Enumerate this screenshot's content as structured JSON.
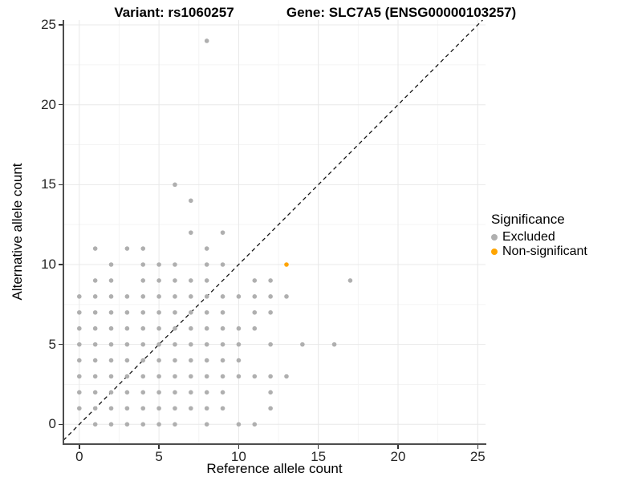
{
  "header": {
    "variant_title": "Variant: rs1060257",
    "gene_title": "Gene: SLC7A5 (ENSG00000103257)"
  },
  "colors": {
    "excluded_point": "#afafaf",
    "non_significant_point": "#ffa500",
    "axis_line": "#4d4d4d",
    "major_grid": "#e8e8e8",
    "minor_grid": "#f4f4f4",
    "identity_line": "#111111"
  },
  "chart_data": {
    "type": "scatter",
    "title": "Variant: rs1060257   Gene: SLC7A5 (ENSG00000103257)",
    "xlabel": "Reference allele count",
    "ylabel": "Alternative allele count",
    "xlim": [
      -1.0,
      25.5
    ],
    "ylim": [
      -1.2,
      25.3
    ],
    "x_ticks": [
      0,
      5,
      10,
      15,
      20,
      25
    ],
    "y_ticks": [
      0,
      5,
      10,
      15,
      20,
      25
    ],
    "minor_ticks": [
      2.5,
      7.5,
      12.5,
      17.5,
      22.5
    ],
    "grid": "major and minor, light gray on white",
    "reference_line": {
      "type": "identity y = x",
      "style": "dashed",
      "color": "#111111"
    },
    "legend": {
      "title": "Significance",
      "position": "right",
      "entries": [
        {
          "label": "Excluded",
          "color": "#afafaf"
        },
        {
          "label": "Non-significant",
          "color": "#ffa500"
        }
      ]
    },
    "series": [
      {
        "name": "Excluded",
        "color": "#afafaf",
        "point_radius": 2.8,
        "points": [
          [
            1,
            0
          ],
          [
            2,
            0
          ],
          [
            3,
            0
          ],
          [
            4,
            0
          ],
          [
            5,
            0
          ],
          [
            6,
            0
          ],
          [
            8,
            0
          ],
          [
            10,
            0
          ],
          [
            11,
            0
          ],
          [
            0,
            1
          ],
          [
            1,
            1
          ],
          [
            2,
            1
          ],
          [
            3,
            1
          ],
          [
            4,
            1
          ],
          [
            5,
            1
          ],
          [
            6,
            1
          ],
          [
            7,
            1
          ],
          [
            8,
            1
          ],
          [
            9,
            1
          ],
          [
            12,
            1
          ],
          [
            0,
            2
          ],
          [
            1,
            2
          ],
          [
            2,
            2
          ],
          [
            3,
            2
          ],
          [
            4,
            2
          ],
          [
            5,
            2
          ],
          [
            6,
            2
          ],
          [
            7,
            2
          ],
          [
            8,
            2
          ],
          [
            9,
            2
          ],
          [
            12,
            2
          ],
          [
            0,
            3
          ],
          [
            1,
            3
          ],
          [
            2,
            3
          ],
          [
            3,
            3
          ],
          [
            4,
            3
          ],
          [
            5,
            3
          ],
          [
            6,
            3
          ],
          [
            7,
            3
          ],
          [
            8,
            3
          ],
          [
            9,
            3
          ],
          [
            10,
            3
          ],
          [
            11,
            3
          ],
          [
            12,
            3
          ],
          [
            13,
            3
          ],
          [
            0,
            4
          ],
          [
            1,
            4
          ],
          [
            2,
            4
          ],
          [
            3,
            4
          ],
          [
            4,
            4
          ],
          [
            5,
            4
          ],
          [
            6,
            4
          ],
          [
            7,
            4
          ],
          [
            8,
            4
          ],
          [
            9,
            4
          ],
          [
            10,
            4
          ],
          [
            0,
            5
          ],
          [
            1,
            5
          ],
          [
            2,
            5
          ],
          [
            3,
            5
          ],
          [
            4,
            5
          ],
          [
            5,
            5
          ],
          [
            6,
            5
          ],
          [
            7,
            5
          ],
          [
            8,
            5
          ],
          [
            9,
            5
          ],
          [
            10,
            5
          ],
          [
            12,
            5
          ],
          [
            14,
            5
          ],
          [
            16,
            5
          ],
          [
            0,
            6
          ],
          [
            1,
            6
          ],
          [
            2,
            6
          ],
          [
            3,
            6
          ],
          [
            4,
            6
          ],
          [
            5,
            6
          ],
          [
            6,
            6
          ],
          [
            7,
            6
          ],
          [
            8,
            6
          ],
          [
            9,
            6
          ],
          [
            10,
            6
          ],
          [
            11,
            6
          ],
          [
            0,
            7
          ],
          [
            1,
            7
          ],
          [
            2,
            7
          ],
          [
            3,
            7
          ],
          [
            4,
            7
          ],
          [
            5,
            7
          ],
          [
            6,
            7
          ],
          [
            7,
            7
          ],
          [
            8,
            7
          ],
          [
            9,
            7
          ],
          [
            11,
            7
          ],
          [
            12,
            7
          ],
          [
            0,
            8
          ],
          [
            1,
            8
          ],
          [
            2,
            8
          ],
          [
            3,
            8
          ],
          [
            4,
            8
          ],
          [
            5,
            8
          ],
          [
            6,
            8
          ],
          [
            7,
            8
          ],
          [
            8,
            8
          ],
          [
            9,
            8
          ],
          [
            10,
            8
          ],
          [
            11,
            8
          ],
          [
            12,
            8
          ],
          [
            13,
            8
          ],
          [
            1,
            9
          ],
          [
            2,
            9
          ],
          [
            4,
            9
          ],
          [
            5,
            9
          ],
          [
            6,
            9
          ],
          [
            7,
            9
          ],
          [
            8,
            9
          ],
          [
            11,
            9
          ],
          [
            12,
            9
          ],
          [
            17,
            9
          ],
          [
            2,
            10
          ],
          [
            4,
            10
          ],
          [
            5,
            10
          ],
          [
            6,
            10
          ],
          [
            8,
            10
          ],
          [
            9,
            10
          ],
          [
            1,
            11
          ],
          [
            3,
            11
          ],
          [
            4,
            11
          ],
          [
            8,
            11
          ],
          [
            7,
            12
          ],
          [
            9,
            12
          ],
          [
            7,
            14
          ],
          [
            6,
            15
          ],
          [
            8,
            24
          ]
        ]
      },
      {
        "name": "Non-significant",
        "color": "#ffa500",
        "point_radius": 2.8,
        "points": [
          [
            13,
            10
          ]
        ]
      }
    ]
  }
}
